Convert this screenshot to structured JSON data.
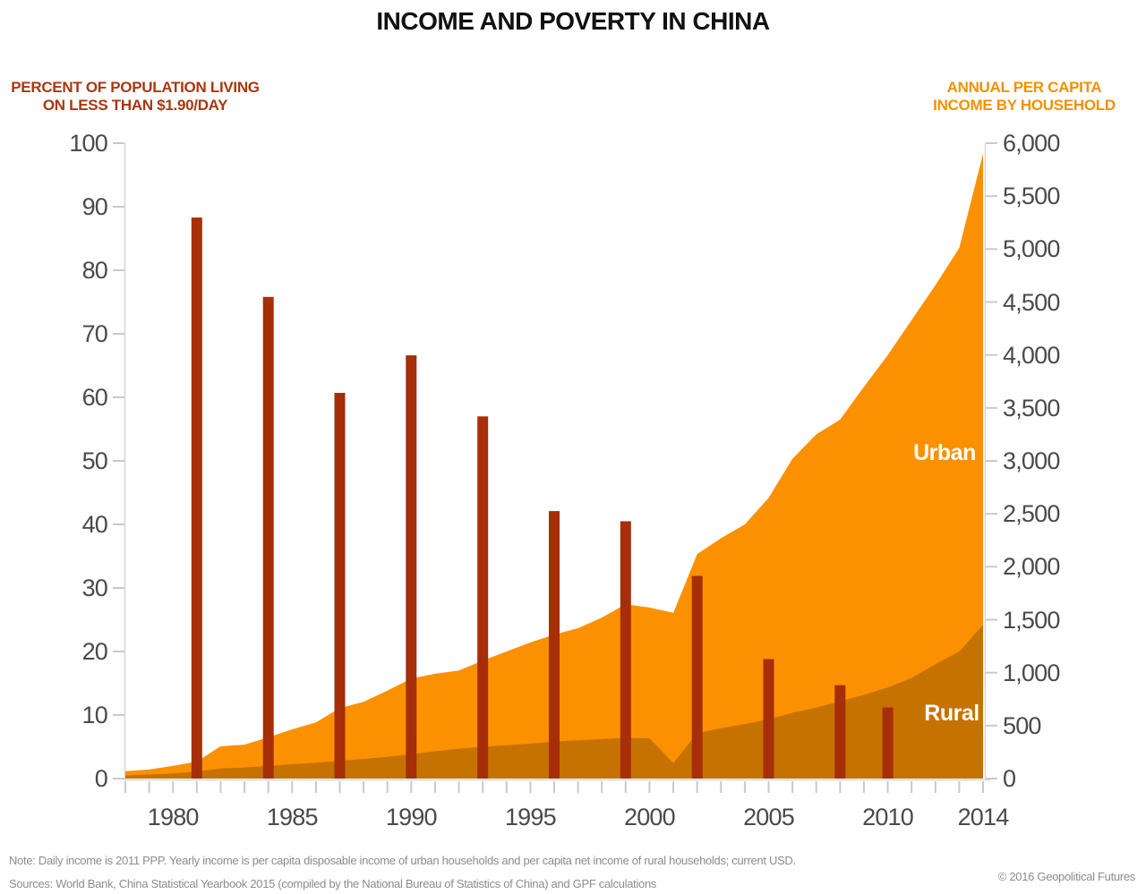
{
  "title": "INCOME AND POVERTY IN CHINA",
  "left_axis": {
    "header1": "PERCENT OF POPULATION LIVING",
    "header2": "ON LESS THAN $1.90/DAY",
    "ticks": [
      {
        "v": 0,
        "label": "0"
      },
      {
        "v": 10,
        "label": "10"
      },
      {
        "v": 20,
        "label": "20"
      },
      {
        "v": 30,
        "label": "30"
      },
      {
        "v": 40,
        "label": "40"
      },
      {
        "v": 50,
        "label": "50"
      },
      {
        "v": 60,
        "label": "60"
      },
      {
        "v": 70,
        "label": "70"
      },
      {
        "v": 80,
        "label": "80"
      },
      {
        "v": 90,
        "label": "90"
      },
      {
        "v": 100,
        "label": "100"
      }
    ]
  },
  "right_axis": {
    "header1": "ANNUAL PER CAPITA",
    "header2": "INCOME BY HOUSEHOLD",
    "ticks": [
      {
        "v": 0,
        "label": "0"
      },
      {
        "v": 500,
        "label": "500"
      },
      {
        "v": 1000,
        "label": "1,000"
      },
      {
        "v": 1500,
        "label": "1,500"
      },
      {
        "v": 2000,
        "label": "2,000"
      },
      {
        "v": 2500,
        "label": "2,500"
      },
      {
        "v": 3000,
        "label": "3,000"
      },
      {
        "v": 3500,
        "label": "3,500"
      },
      {
        "v": 4000,
        "label": "4,000"
      },
      {
        "v": 4500,
        "label": "4,500"
      },
      {
        "v": 5000,
        "label": "5,000"
      },
      {
        "v": 5500,
        "label": "5,500"
      },
      {
        "v": 6000,
        "label": "6,000"
      }
    ]
  },
  "x_axis": {
    "range": [
      1978,
      2014
    ],
    "labels": [
      {
        "year": 1980,
        "label": "1980"
      },
      {
        "year": 1985,
        "label": "1985"
      },
      {
        "year": 1990,
        "label": "1990"
      },
      {
        "year": 1995,
        "label": "1995"
      },
      {
        "year": 2000,
        "label": "2000"
      },
      {
        "year": 2005,
        "label": "2005"
      },
      {
        "year": 2010,
        "label": "2010"
      },
      {
        "year": 2014,
        "label": "2014"
      }
    ]
  },
  "area_labels": {
    "urban": "Urban",
    "rural": "Rural"
  },
  "footer": {
    "note": "Note: Daily income is 2011 PPP. Yearly income is per capita disposable income of urban households and per capita net income of rural households; current USD.",
    "sources": "Sources: World Bank, China Statistical Yearbook 2015 (compiled by the National Bureau of Statistics of China) and GPF calculations",
    "copyright": "© 2016 Geopolitical Futures"
  },
  "colors": {
    "bar": "#A62E09",
    "urban_area": "#FB9100",
    "rural_area": "#C67200",
    "left_header": "#A9380F",
    "right_header": "#F39000",
    "title": "#111111",
    "tick_label": "#4A4A4A",
    "axis_line": "#D6D6D6",
    "tick_mark": "#C9C9C9",
    "footer_text": "#8C8C8C",
    "area_label_text": "#FFFFFF"
  },
  "chart_data": {
    "type": "mixed",
    "xlim": [
      1978,
      2014
    ],
    "left_ylim": [
      0,
      100
    ],
    "right_ylim": [
      0,
      6000
    ],
    "grid": false,
    "series": [
      {
        "name": "Percent of population living on less than $1.90/day",
        "type": "bar",
        "axis": "left",
        "x": [
          1981,
          1984,
          1987,
          1990,
          1993,
          1996,
          1999,
          2002,
          2005,
          2008,
          2010
        ],
        "values": [
          88.3,
          75.8,
          60.7,
          66.6,
          57.0,
          42.1,
          40.5,
          31.9,
          18.8,
          14.7,
          11.2
        ]
      },
      {
        "name": "Urban",
        "type": "area",
        "axis": "right",
        "x": [
          1978,
          1979,
          1980,
          1981,
          1982,
          1983,
          1984,
          1985,
          1986,
          1987,
          1988,
          1989,
          1990,
          1991,
          1992,
          1993,
          1994,
          1995,
          1996,
          1997,
          1998,
          1999,
          2000,
          2001,
          2002,
          2003,
          2004,
          2005,
          2006,
          2007,
          2008,
          2009,
          2010,
          2011,
          2012,
          2013,
          2014
        ],
        "values": [
          70,
          85,
          120,
          160,
          305,
          320,
          390,
          465,
          530,
          665,
          725,
          830,
          945,
          990,
          1020,
          1115,
          1200,
          1285,
          1360,
          1420,
          1520,
          1645,
          1615,
          1565,
          2120,
          2270,
          2400,
          2650,
          3020,
          3250,
          3390,
          3700,
          4000,
          4330,
          4660,
          5010,
          5900
        ]
      },
      {
        "name": "Rural",
        "type": "area",
        "axis": "right",
        "x": [
          1978,
          1979,
          1980,
          1981,
          1982,
          1983,
          1984,
          1985,
          1986,
          1987,
          1988,
          1989,
          1990,
          1991,
          1992,
          1993,
          1994,
          1995,
          1996,
          1997,
          1998,
          1999,
          2000,
          2001,
          2002,
          2003,
          2004,
          2005,
          2006,
          2007,
          2008,
          2009,
          2010,
          2011,
          2012,
          2013,
          2014
        ],
        "values": [
          30,
          38,
          48,
          65,
          95,
          105,
          120,
          135,
          150,
          168,
          185,
          205,
          230,
          258,
          282,
          300,
          315,
          330,
          350,
          362,
          372,
          385,
          380,
          145,
          430,
          475,
          515,
          560,
          620,
          670,
          730,
          790,
          860,
          950,
          1080,
          1200,
          1450
        ]
      }
    ]
  }
}
